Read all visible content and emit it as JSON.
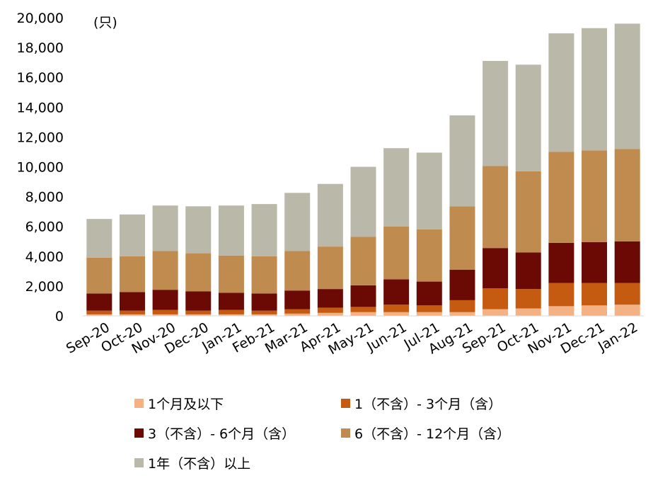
{
  "chart_data": {
    "type": "bar",
    "stacked": true,
    "unit_label": "(只)",
    "categories": [
      "Sep-20",
      "Oct-20",
      "Nov-20",
      "Dec-20",
      "Jan-21",
      "Feb-21",
      "Mar-21",
      "Apr-21",
      "May-21",
      "Jun-21",
      "Jul-21",
      "Aug-21",
      "Sep-21",
      "Oct-21",
      "Nov-21",
      "Dec-21",
      "Jan-22"
    ],
    "ylim": [
      0,
      20000
    ],
    "yticks": [
      0,
      2000,
      4000,
      6000,
      8000,
      10000,
      12000,
      14000,
      16000,
      18000,
      20000
    ],
    "ytick_labels": [
      "0",
      "2,000",
      "4,000",
      "6,000",
      "8,000",
      "10,000",
      "12,000",
      "14,000",
      "16,000",
      "18,000",
      "20,000"
    ],
    "grid": false,
    "legend_position": "bottom",
    "series": [
      {
        "name": "1个月及以下",
        "color": "#F4B183",
        "values": [
          100,
          100,
          100,
          100,
          100,
          100,
          150,
          200,
          250,
          250,
          250,
          250,
          450,
          500,
          650,
          700,
          750
        ]
      },
      {
        "name": "1（不含）- 3个月（含）",
        "color": "#C55A11",
        "values": [
          250,
          250,
          300,
          250,
          300,
          250,
          300,
          350,
          350,
          500,
          450,
          800,
          1400,
          1300,
          1550,
          1500,
          1450
        ]
      },
      {
        "name": "3（不含）- 6个月（含）",
        "color": "#6B0A04",
        "values": [
          1150,
          1250,
          1350,
          1300,
          1150,
          1150,
          1250,
          1250,
          1450,
          1700,
          1600,
          2050,
          2700,
          2450,
          2700,
          2750,
          2800
        ]
      },
      {
        "name": "6（不含）- 12个月（含）",
        "color": "#BF8B4E",
        "values": [
          2400,
          2400,
          2600,
          2550,
          2500,
          2500,
          2650,
          2850,
          3250,
          3550,
          3500,
          4250,
          5500,
          5450,
          6100,
          6150,
          6200
        ]
      },
      {
        "name": "1年（不含）以上",
        "color": "#BAB8A8",
        "values": [
          2600,
          2800,
          3050,
          3150,
          3350,
          3500,
          3900,
          4200,
          4700,
          5250,
          5150,
          6100,
          7050,
          7150,
          7950,
          8200,
          8400
        ]
      }
    ]
  }
}
